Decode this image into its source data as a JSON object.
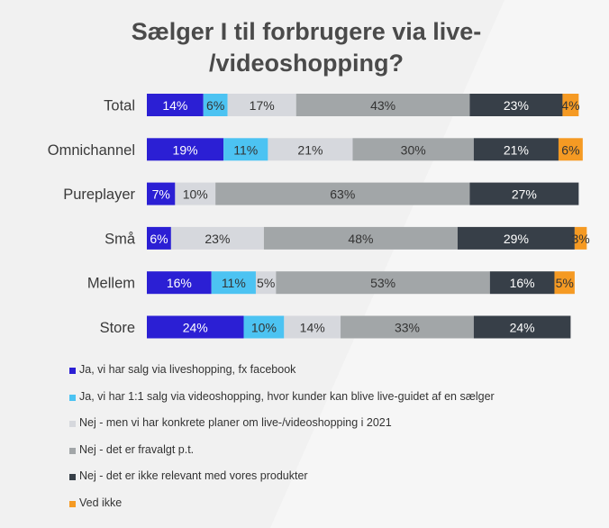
{
  "chart_data": {
    "type": "bar",
    "orientation": "horizontal",
    "stacked": true,
    "percent_stacked": true,
    "title": "Sælger I til forbrugere via live-/videoshopping?",
    "title_lines": [
      "Sælger I til forbrugere via live-",
      "/videoshopping?"
    ],
    "categories": [
      "Total",
      "Omnichannel",
      "Pureplayer",
      "Små",
      "Mellem",
      "Store"
    ],
    "series": [
      {
        "name": "Ja, vi har salg via liveshopping, fx facebook",
        "color": "#2b1fd4",
        "label_color": "#ffffff",
        "values": [
          14,
          19,
          7,
          6,
          16,
          24
        ]
      },
      {
        "name": "Ja, vi har 1:1 salg via videoshopping, hvor kunder kan blive live-guidet af en sælger",
        "color": "#4cc3f2",
        "label_color": "#333333",
        "values": [
          6,
          11,
          0,
          0,
          11,
          10
        ]
      },
      {
        "name": "Nej - men vi har konkrete planer om live-/videoshopping i 2021",
        "color": "#d6d8dd",
        "label_color": "#333333",
        "values": [
          17,
          21,
          10,
          23,
          5,
          14
        ]
      },
      {
        "name": "Nej - det er fravalgt p.t.",
        "color": "#a2a6a8",
        "label_color": "#333333",
        "values": [
          43,
          30,
          63,
          48,
          53,
          33
        ]
      },
      {
        "name": "Nej - det er ikke relevant med vores produkter",
        "color": "#373f48",
        "label_color": "#ffffff",
        "values": [
          23,
          21,
          27,
          29,
          16,
          24
        ]
      },
      {
        "name": "Ved ikke",
        "color": "#f59a23",
        "label_color": "#333333",
        "values": [
          4,
          6,
          0,
          3,
          5,
          0
        ]
      }
    ],
    "value_suffix": "%",
    "xlim": [
      0,
      107
    ],
    "legend_position": "bottom-left",
    "grid": false
  }
}
